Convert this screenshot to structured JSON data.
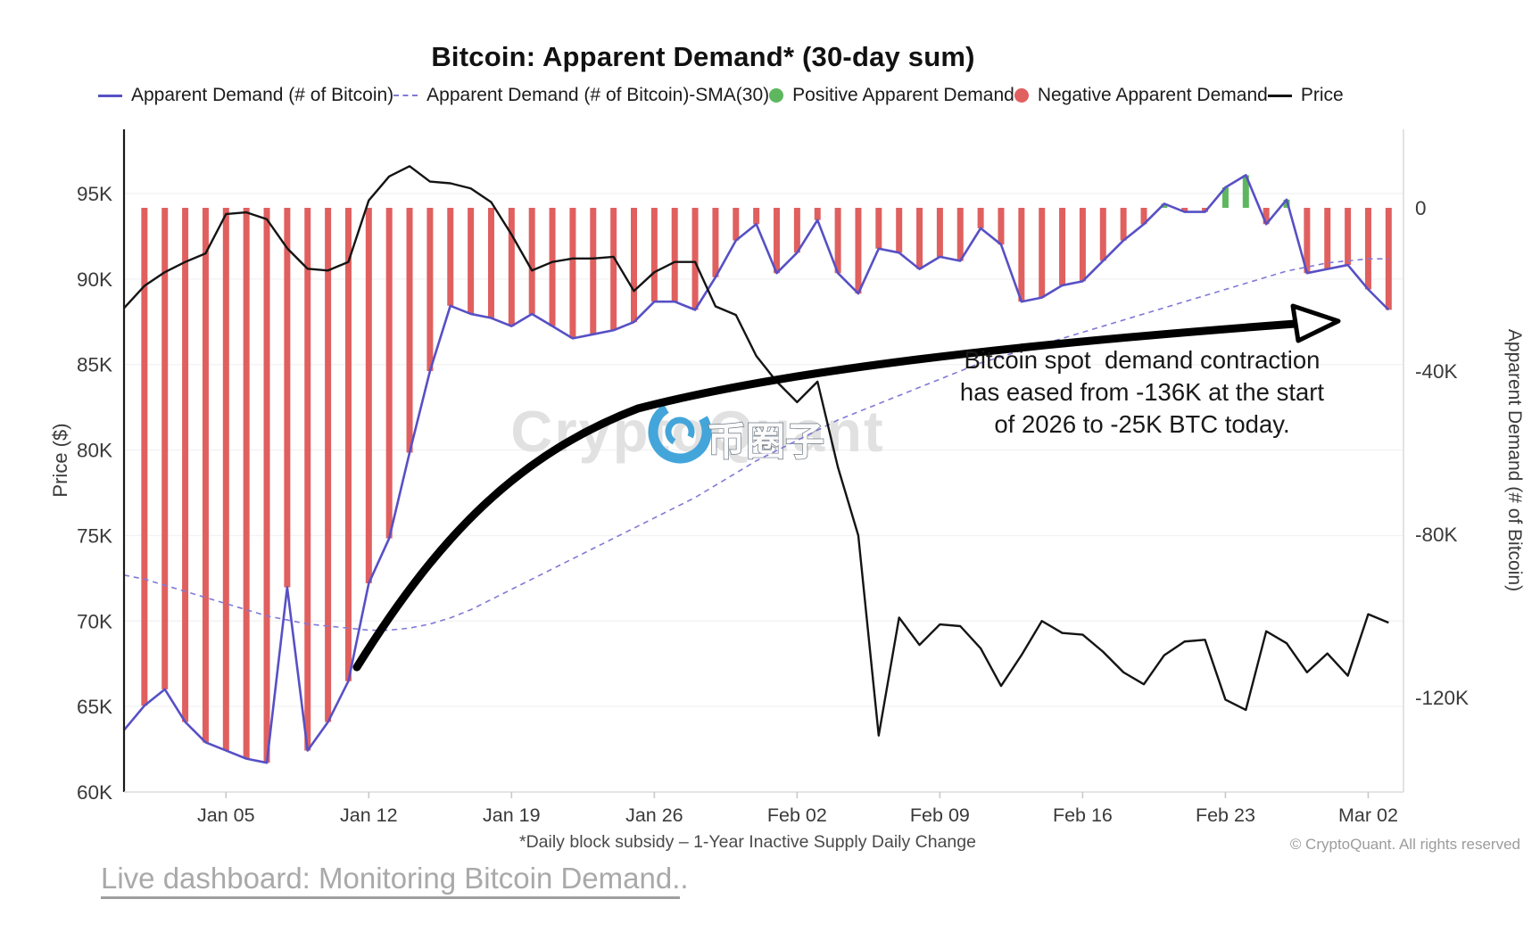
{
  "title": "Bitcoin: Apparent Demand* (30-day sum)",
  "legend": {
    "items": [
      {
        "label": "Apparent Demand (# of Bitcoin)",
        "marker": "line",
        "color": "#5750c5"
      },
      {
        "label": "Apparent Demand (# of Bitcoin)-SMA(30)",
        "marker": "dash",
        "color": "#8079d6"
      },
      {
        "label": "Positive Apparent Demand",
        "marker": "dot",
        "color": "#5eb75e"
      },
      {
        "label": "Negative Apparent Demand",
        "marker": "dot",
        "color": "#e0605f"
      },
      {
        "label": "Price",
        "marker": "line",
        "color": "#141414"
      }
    ]
  },
  "axis_titles": {
    "left": "Price ($)",
    "right": "Apparent Demand (# of Bitcoin)"
  },
  "annotation": {
    "text": "Bitcoin spot  demand contraction\nhas eased from -136K at the start\nof 2026 to -25K BTC today."
  },
  "watermark": {
    "text": "CryptoQuant",
    "cjk": "币圈子"
  },
  "footnote": "*Daily block subsidy – 1-Year Inactive Supply Daily Change",
  "copyright": "© CryptoQuant. All rights reserved",
  "link": {
    "text": "Live dashboard: Monitoring Bitcoin Demand.",
    "suffix": "."
  },
  "colors": {
    "negative_bar": "#e0605f",
    "positive_bar": "#5eb75e",
    "demand_line": "#5750c5",
    "sma_line": "#8079d6",
    "price_line": "#141414",
    "grid": "#f3f3f3",
    "left_axis_line": "#1a1a1a",
    "frame_line": "#dcdcdc",
    "tick_label": "#3a3a3a",
    "watermark_text": "#e1e1e1",
    "watermark_logo_blue": "#44a5da",
    "arrow": "#000000"
  },
  "chart_data": {
    "type": "combo (bar + line)",
    "title": "Bitcoin: Apparent Demand* (30-day sum)",
    "x_dates": [
      "Dec 31",
      "Jan 01",
      "Jan 02",
      "Jan 03",
      "Jan 04",
      "Jan 05",
      "Jan 06",
      "Jan 07",
      "Jan 08",
      "Jan 09",
      "Jan 10",
      "Jan 11",
      "Jan 12",
      "Jan 13",
      "Jan 14",
      "Jan 15",
      "Jan 16",
      "Jan 17",
      "Jan 18",
      "Jan 19",
      "Jan 20",
      "Jan 21",
      "Jan 22",
      "Jan 23",
      "Jan 24",
      "Jan 25",
      "Jan 26",
      "Jan 27",
      "Jan 28",
      "Jan 29",
      "Jan 30",
      "Jan 31",
      "Feb 01",
      "Feb 02",
      "Feb 03",
      "Feb 04",
      "Feb 05",
      "Feb 06",
      "Feb 07",
      "Feb 08",
      "Feb 09",
      "Feb 10",
      "Feb 11",
      "Feb 12",
      "Feb 13",
      "Feb 14",
      "Feb 15",
      "Feb 16",
      "Feb 17",
      "Feb 18",
      "Feb 19",
      "Feb 20",
      "Feb 21",
      "Feb 22",
      "Feb 23",
      "Feb 24",
      "Feb 25",
      "Feb 26",
      "Feb 27",
      "Feb 28",
      "Mar 01",
      "Mar 02",
      "Mar 03"
    ],
    "x_tick_labels": [
      {
        "label": "Jan 05",
        "index": 5
      },
      {
        "label": "Jan 12",
        "index": 12
      },
      {
        "label": "Jan 19",
        "index": 19
      },
      {
        "label": "Jan 26",
        "index": 26
      },
      {
        "label": "Feb 02",
        "index": 33
      },
      {
        "label": "Feb 09",
        "index": 40
      },
      {
        "label": "Feb 16",
        "index": 47
      },
      {
        "label": "Feb 23",
        "index": 54
      },
      {
        "label": "Mar 02",
        "index": 61
      }
    ],
    "left_axis": {
      "label": "Price ($)",
      "units": "thousand USD",
      "ticks": [
        {
          "label": "60K",
          "value": 60
        },
        {
          "label": "65K",
          "value": 65
        },
        {
          "label": "70K",
          "value": 70
        },
        {
          "label": "75K",
          "value": 75
        },
        {
          "label": "80K",
          "value": 80
        },
        {
          "label": "85K",
          "value": 85
        },
        {
          "label": "90K",
          "value": 90
        },
        {
          "label": "95K",
          "value": 95
        }
      ]
    },
    "right_axis": {
      "label": "Apparent Demand (# of Bitcoin)",
      "units": "thousand BTC",
      "ticks": [
        {
          "label": "0",
          "value": 0
        },
        {
          "label": "-40K",
          "value": -40
        },
        {
          "label": "-80K",
          "value": -80
        },
        {
          "label": "-120K",
          "value": -120
        }
      ]
    },
    "grid": "faint horizontal lines at price ticks",
    "legend_position": "top",
    "series": [
      {
        "name": "Apparent Demand (# of Bitcoin)",
        "type": "line",
        "axis": "right",
        "unit": "K BTC",
        "values": [
          -128,
          -122,
          -118,
          -126,
          -131,
          -133,
          -135,
          -136,
          -93,
          -133,
          -126,
          -116,
          -92,
          -81,
          -60,
          -40,
          -24,
          -26,
          -27,
          -29,
          -26,
          -29,
          -32,
          -31,
          -30,
          -28,
          -23,
          -23,
          -25,
          -17,
          -8,
          -4,
          -16,
          -11,
          -3,
          -16,
          -21,
          -10,
          -11,
          -15,
          -12,
          -13,
          -5,
          -9,
          -23,
          -22,
          -19,
          -18,
          -13,
          -8,
          -4,
          1,
          -1,
          -1,
          5,
          8,
          -4,
          2,
          -16,
          -15,
          -14,
          -20,
          -25
        ]
      },
      {
        "name": "Apparent Demand daily bars (green = positive, red = negative)",
        "type": "bar",
        "axis": "right",
        "unit": "K BTC",
        "first_bar_index": 1,
        "values": [
          null,
          -122,
          -118,
          -126,
          -131,
          -133,
          -135,
          -136,
          -93,
          -133,
          -126,
          -116,
          -92,
          -81,
          -60,
          -40,
          -24,
          -26,
          -27,
          -29,
          -26,
          -29,
          -32,
          -31,
          -30,
          -28,
          -23,
          -23,
          -25,
          -17,
          -8,
          -4,
          -16,
          -11,
          -3,
          -16,
          -21,
          -10,
          -11,
          -15,
          -12,
          -13,
          -5,
          -9,
          -23,
          -22,
          -19,
          -18,
          -13,
          -8,
          -4,
          1,
          -1,
          -1,
          5,
          8,
          -4,
          2,
          -16,
          -15,
          -14,
          -20,
          -25
        ]
      },
      {
        "name": "Apparent Demand (# of Bitcoin)-SMA(30)",
        "type": "line",
        "style": "dashed",
        "axis": "right",
        "unit": "K BTC",
        "values": [
          -90,
          -91,
          -92.5,
          -94,
          -95.5,
          -97,
          -98.5,
          -100,
          -101,
          -102,
          -102.5,
          -103,
          -103.5,
          -103.5,
          -103,
          -102,
          -100.5,
          -98.5,
          -96,
          -93.5,
          -91,
          -88.5,
          -86,
          -83.5,
          -81,
          -78.5,
          -76,
          -73.5,
          -71,
          -68,
          -65,
          -62,
          -59.5,
          -57,
          -54.5,
          -52,
          -50,
          -48,
          -46,
          -44,
          -42,
          -40,
          -38,
          -36.5,
          -35,
          -33.5,
          -32,
          -30.5,
          -29,
          -27.5,
          -26,
          -24.5,
          -23,
          -21.5,
          -20,
          -18.5,
          -17,
          -15.5,
          -14.5,
          -13.5,
          -13,
          -12.5,
          -12.5
        ]
      },
      {
        "name": "Price",
        "type": "line",
        "axis": "left",
        "unit": "K USD",
        "values": [
          88.3,
          89.6,
          90.4,
          91.0,
          91.5,
          93.8,
          93.9,
          93.5,
          91.8,
          90.6,
          90.5,
          91.0,
          94.6,
          96.0,
          96.6,
          95.7,
          95.6,
          95.3,
          94.5,
          92.6,
          90.5,
          91.0,
          91.2,
          91.2,
          91.3,
          89.3,
          90.4,
          91.0,
          91.0,
          88.4,
          87.9,
          85.5,
          84.0,
          82.8,
          84.0,
          79.0,
          75.0,
          63.3,
          70.2,
          68.6,
          69.8,
          69.7,
          68.4,
          66.2,
          68.0,
          70.0,
          69.3,
          69.2,
          68.2,
          67.0,
          66.3,
          68.0,
          68.8,
          68.9,
          65.4,
          64.8,
          69.4,
          68.7,
          67.0,
          68.1,
          66.8,
          70.4,
          69.9
        ]
      }
    ],
    "annotation": "Bitcoin spot demand contraction has eased from -136K at the start of 2026 to -25K BTC today.",
    "annotation_key_values": {
      "start_of_2026_k_btc": -136,
      "today_k_btc": -25
    }
  }
}
